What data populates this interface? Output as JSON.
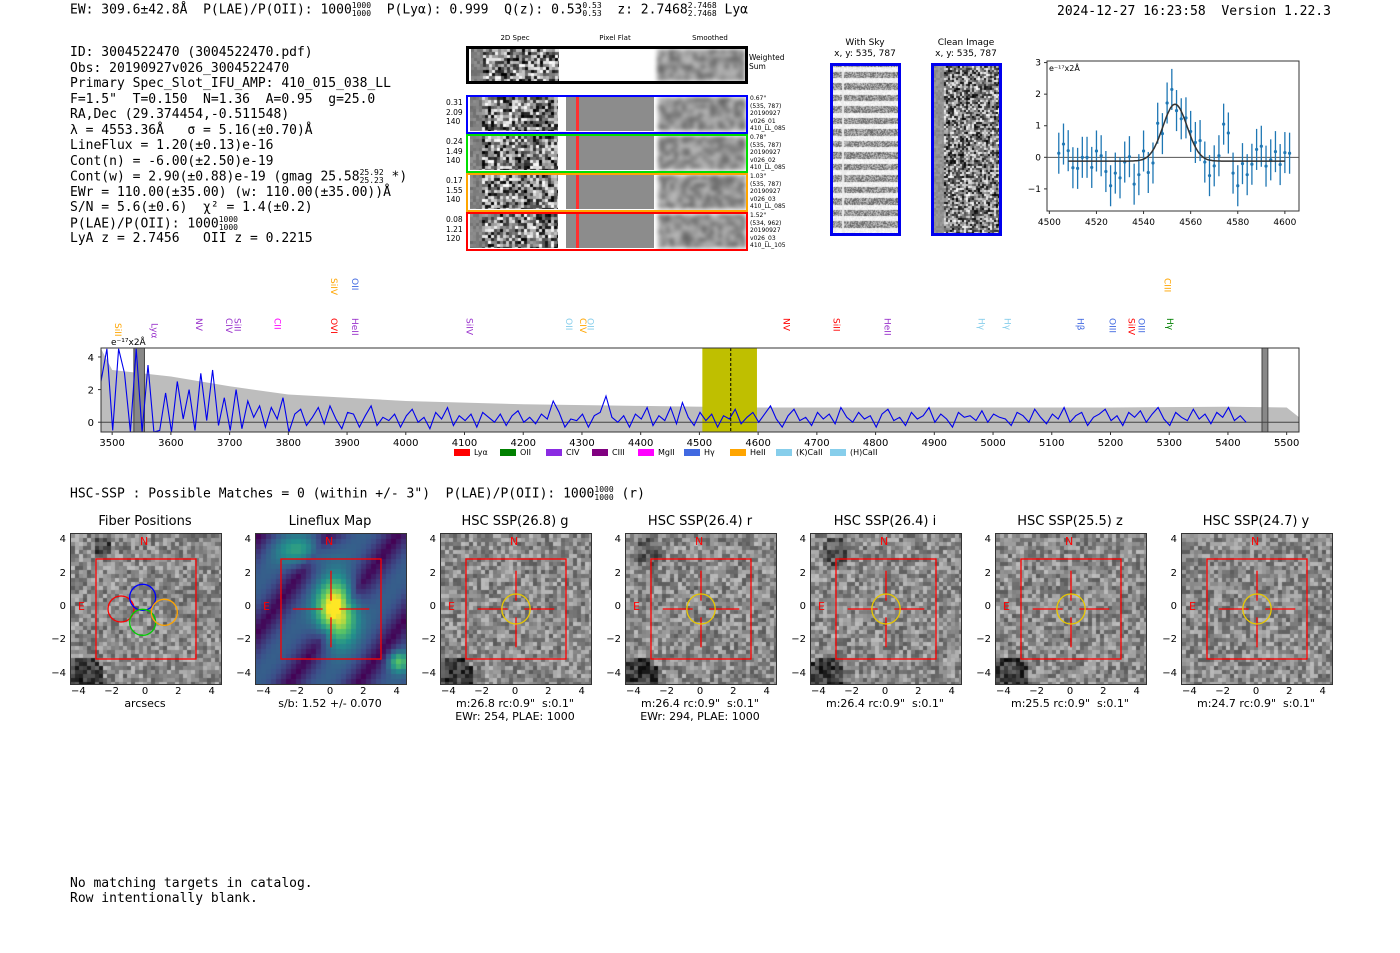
{
  "header": {
    "ew": "EW: 309.6±42.8Å",
    "plae_label": "P(LAE)/P(OII): 1000",
    "plae_hi": "1000",
    "plae_lo": "1000",
    "plya": "P(Lyα): 0.999",
    "qz": "Q(z): 0.53",
    "qz_hi": "0.53",
    "qz_lo": "0.53",
    "z": "z: 2.7468",
    "z_hi": "2.7468",
    "z_lo": "2.7468",
    "z_line": "Lyα",
    "datetime": "2024-12-27 16:23:58",
    "version": "Version 1.22.3"
  },
  "info": {
    "lines": [
      "ID: 3004522470 (3004522470.pdf)",
      "Obs: 20190927v026_3004522470",
      "Primary Spec_Slot_IFU_AMP: 410_015_038_LL",
      "F=1.5\"  T=0.150  N=1.36  A=0.95  g=25.0",
      "RA,Dec (29.374454,-0.511548)",
      "λ = 4553.36Å   σ = 5.16(±0.70)Å",
      "LineFlux = 1.20(±0.13)e-16",
      "Cont(n) = -6.00(±2.50)e-19"
    ],
    "cont_w": "Cont(w) = 2.90(±0.88)e-19 (gmag 25.58",
    "gmag_hi": "25.92",
    "gmag_lo": "25.23",
    "cont_w_end": " *)",
    "lines2": [
      "EWr = 110.00(±35.00) (w: 110.00(±35.00))Å",
      "S/N = 5.6(±0.6)  χ² = 1.4(±0.2)"
    ],
    "plae": "P(LAE)/P(OII): 1000",
    "plae_hi": "1000",
    "plae_lo": "1000",
    "z_line": "LyA z = 2.7456   OII z = 0.2215"
  },
  "spec2d": {
    "col_headers": [
      "2D Spec",
      "Pixel Flat",
      "Smoothed"
    ],
    "weighted_label": "Weighted\nSum",
    "rows": [
      {
        "color": "#0000ff",
        "left": "0.31\n2.09\n140",
        "right": "0.67\"\n(535, 787)\n20190927\nv026_01\n410_LL_085"
      },
      {
        "color": "#00dd00",
        "left": "0.24\n1.49\n140",
        "right": "0.78\"\n(535, 787)\n20190927\nv026_02\n410_LL_085"
      },
      {
        "color": "#ffa500",
        "left": "0.17\n1.55\n140",
        "right": "1.03\"\n(535, 787)\n20190927\nv026_03\n410_LL_085"
      },
      {
        "color": "#ff0000",
        "left": "0.08\n1.21\n120",
        "right": "1.52\"\n(534, 962)\n20190927\nv026_03\n410_LL_105"
      }
    ]
  },
  "with_sky": {
    "title": "With Sky",
    "coords": "x, y: 535, 787"
  },
  "clean": {
    "title": "Clean Image",
    "coords": "x, y: 535, 787"
  },
  "chart_data": [
    {
      "type": "scatter",
      "name": "line-fit",
      "unit_label": "e⁻¹⁷x2Å",
      "xlim": [
        4499,
        4606
      ],
      "ylim": [
        -1.7,
        3.05
      ],
      "xticks": [
        4500,
        4520,
        4540,
        4560,
        4580,
        4600
      ],
      "yticks": [
        -1,
        0,
        1,
        2,
        3
      ],
      "x": [
        4504,
        4506,
        4508,
        4510,
        4512,
        4514,
        4516,
        4518,
        4520,
        4522,
        4524,
        4526,
        4528,
        4530,
        4532,
        4534,
        4536,
        4538,
        4540,
        4542,
        4544,
        4546,
        4548,
        4550,
        4552,
        4554,
        4556,
        4558,
        4560,
        4562,
        4564,
        4566,
        4568,
        4570,
        4572,
        4574,
        4576,
        4578,
        4580,
        4582,
        4584,
        4586,
        4588,
        4590,
        4592,
        4594,
        4596,
        4598,
        4600,
        4602
      ],
      "y": [
        0.13,
        0.42,
        0.21,
        -0.33,
        -0.35,
        0.0,
        0.0,
        -0.32,
        0.2,
        0.05,
        -0.45,
        -0.9,
        -0.5,
        -0.65,
        -0.15,
        0.02,
        -0.85,
        -0.55,
        0.2,
        -0.48,
        -0.18,
        1.08,
        0.75,
        1.72,
        2.15,
        1.48,
        1.22,
        1.25,
        0.82,
        0.47,
        0.53,
        -0.15,
        -0.58,
        -0.27,
        0.05,
        1.05,
        0.77,
        -0.5,
        -0.9,
        -0.2,
        -0.55,
        -0.22,
        0.25,
        0.35,
        -0.28,
        -0.08,
        0.18,
        -0.23,
        0.15,
        0.13
      ],
      "yerr": 0.65,
      "fit": {
        "center": 4553.36,
        "sigma": 5.16,
        "amplitude": 1.8,
        "baseline": -0.12
      }
    },
    {
      "type": "line",
      "name": "full-spectrum",
      "unit_label": "e⁻¹⁷x2Å",
      "xlim": [
        3481,
        5521
      ],
      "ylim": [
        -0.6,
        4.55
      ],
      "xticks": [
        3500,
        3600,
        3700,
        3800,
        3900,
        4000,
        4100,
        4200,
        4300,
        4400,
        4500,
        4600,
        4700,
        4800,
        4900,
        5000,
        5100,
        5200,
        5300,
        5400,
        5500
      ],
      "yticks": [
        0,
        2,
        4
      ],
      "highlight_range": [
        4505,
        4598
      ],
      "line_center": 4553.36,
      "masked_ranges": [
        [
          3537,
          3555
        ],
        [
          5458,
          5468
        ]
      ],
      "error_x": [
        3481,
        3500,
        3550,
        3600,
        3700,
        3800,
        3900,
        4000,
        4100,
        4200,
        4400,
        4600,
        4800,
        5000,
        5200,
        5400,
        5500,
        5521
      ],
      "error_y": [
        4.5,
        3.2,
        3.0,
        2.8,
        2.2,
        1.7,
        1.5,
        1.3,
        1.2,
        1.1,
        1.0,
        0.9,
        0.9,
        0.9,
        0.9,
        0.95,
        0.9,
        0.3
      ],
      "flux_step": 10,
      "flux": [
        2.5,
        4.5,
        -0.5,
        4.5,
        3.0,
        -0.6,
        4.5,
        -0.6,
        3.5,
        -0.6,
        -0.5,
        1.8,
        -0.6,
        2.5,
        0.2,
        2.0,
        -0.5,
        3.0,
        0.1,
        3.2,
        -0.2,
        1.5,
        -0.5,
        2.0,
        -0.4,
        1.3,
        0.3,
        1.0,
        -0.3,
        0.9,
        0.2,
        1.5,
        -0.6,
        0.5,
        0.8,
        -0.2,
        0.3,
        0.9,
        -0.1,
        1.0,
        0.2,
        -0.4,
        0.6,
        0.5,
        -0.3,
        0.4,
        1.0,
        -0.2,
        0.3,
        0.1,
        0.5,
        -0.3,
        0.4,
        0.8,
        0.0,
        0.3,
        -0.4,
        0.6,
        0.2,
        0.9,
        -0.2,
        0.4,
        0.1,
        0.5,
        -0.3,
        0.6,
        0.3,
        0.0,
        0.5,
        -0.2,
        0.4,
        0.7,
        0.0,
        0.3,
        -0.1,
        0.5,
        0.2,
        1.3,
        0.6,
        -0.3,
        0.2,
        0.1,
        0.5,
        -0.3,
        0.4,
        0.6,
        1.6,
        0.3,
        0.0,
        0.4,
        -0.3,
        0.5,
        0.2,
        0.9,
        -0.2,
        0.4,
        0.1,
        0.9,
        -0.1,
        1.2,
        0.3,
        -0.2,
        0.6,
        0.1,
        0.5,
        -0.3,
        0.4,
        0.2,
        0.8,
        -0.1,
        0.3,
        0.6,
        0.0,
        0.5,
        1.0,
        0.2,
        -0.3,
        0.4,
        0.8,
        0.1,
        0.3,
        -0.2,
        0.6,
        0.2,
        0.5,
        -0.1,
        0.9,
        0.3,
        0.0,
        0.6,
        0.2,
        0.4,
        -0.3,
        0.5,
        0.8,
        0.1,
        0.3,
        -0.2,
        0.6,
        0.2,
        0.4,
        0.9,
        0.0,
        0.5,
        0.2,
        -0.3,
        0.6,
        0.3,
        0.4,
        0.1,
        0.7,
        0.0,
        0.5,
        0.3,
        0.2,
        -0.2,
        0.6,
        0.4,
        0.0,
        0.8,
        0.3,
        -0.1,
        0.5,
        0.2,
        0.9,
        0.0,
        0.4,
        0.6,
        -0.2,
        0.3,
        0.5,
        0.8,
        0.1,
        0.4,
        -0.2,
        0.6,
        0.3,
        0.7,
        0.0,
        0.5,
        0.9,
        0.2,
        -0.2,
        0.6,
        0.3,
        0.1,
        0.8,
        0.2,
        0.5,
        -0.1,
        0.6,
        0.3,
        0.9,
        0.1,
        0.4,
        0.0
      ],
      "line_labels": [
        {
          "name": "SiII",
          "w": 3508,
          "color": "#ffa500",
          "row": "low"
        },
        {
          "name": "Lyα",
          "w": 3570,
          "color": "#9932cc",
          "row": "low"
        },
        {
          "name": "NV",
          "w": 3646,
          "color": "#9932cc",
          "row": "mid"
        },
        {
          "name": "CIV",
          "w": 3697,
          "color": "#9932cc",
          "row": "mid"
        },
        {
          "name": "SiII",
          "w": 3712,
          "color": "#9932cc",
          "row": "mid"
        },
        {
          "name": "CII",
          "w": 3780,
          "color": "#ff00ff",
          "row": "mid"
        },
        {
          "name": "OVI",
          "w": 3876,
          "color": "#ff0000",
          "row": "mid"
        },
        {
          "name": "SiIV",
          "w": 3876,
          "color": "#ffa500",
          "row": "high"
        },
        {
          "name": "HeII",
          "w": 3912,
          "color": "#9932cc",
          "row": "mid"
        },
        {
          "name": "OII",
          "w": 3912,
          "color": "#4169e1",
          "row": "high"
        },
        {
          "name": "SiIV",
          "w": 4107,
          "color": "#9932cc",
          "row": "mid"
        },
        {
          "name": "OII",
          "w": 4276,
          "color": "#87ceeb",
          "row": "mid"
        },
        {
          "name": "CIV",
          "w": 4300,
          "color": "#ffa500",
          "row": "mid"
        },
        {
          "name": "OII",
          "w": 4313,
          "color": "#87ceeb",
          "row": "mid"
        },
        {
          "name": "NV",
          "w": 4647,
          "color": "#ff0000",
          "row": "mid"
        },
        {
          "name": "SiII",
          "w": 4732,
          "color": "#ff0000",
          "row": "mid"
        },
        {
          "name": "HeII",
          "w": 4819,
          "color": "#9932cc",
          "row": "mid"
        },
        {
          "name": "Hγ",
          "w": 4979,
          "color": "#87ceeb",
          "row": "mid"
        },
        {
          "name": "Hγ",
          "w": 5023,
          "color": "#87ceeb",
          "row": "mid"
        },
        {
          "name": "Hβ",
          "w": 5147,
          "color": "#4169e1",
          "row": "mid"
        },
        {
          "name": "OIII",
          "w": 5202,
          "color": "#4169e1",
          "row": "mid"
        },
        {
          "name": "SiIV",
          "w": 5234,
          "color": "#ff0000",
          "row": "mid"
        },
        {
          "name": "OIII",
          "w": 5251,
          "color": "#4169e1",
          "row": "mid"
        },
        {
          "name": "CIII",
          "w": 5295,
          "color": "#ffa500",
          "row": "high"
        },
        {
          "name": "Hγ",
          "w": 5300,
          "color": "#008000",
          "row": "mid"
        }
      ],
      "legend": [
        {
          "label": "Lyα",
          "color": "#ff0000"
        },
        {
          "label": "OII",
          "color": "#008000"
        },
        {
          "label": "CIV",
          "color": "#8a2be2"
        },
        {
          "label": "CIII",
          "color": "#800080"
        },
        {
          "label": "MgII",
          "color": "#ff00ff"
        },
        {
          "label": "Hγ",
          "color": "#4169e1"
        },
        {
          "label": "HeII",
          "color": "#ffa500"
        },
        {
          "label": "(K)CaII",
          "color": "#87ceeb"
        },
        {
          "label": "(H)CaII",
          "color": "#87ceeb"
        }
      ]
    }
  ],
  "hsc": {
    "summary": "HSC-SSP : Possible Matches = 0 (within +/- 3\")  P(LAE)/P(OII): 1000",
    "hi": "1000",
    "lo": "1000",
    "suffix": "(r)"
  },
  "cutouts": {
    "ticks": [
      "−4",
      "−2",
      "0",
      "2",
      "4"
    ],
    "north": "N",
    "east": "E",
    "panels": [
      {
        "title": "Fiber Positions",
        "caption": "arcsecs",
        "kind": "fibers"
      },
      {
        "title": "Lineflux Map",
        "caption": "s/b: 1.52 +/- 0.070",
        "kind": "flux"
      },
      {
        "title": "HSC SSP(26.8) g",
        "caption": "m:26.8 rc:0.9\"  s:0.1\"\nEWr: 254, PLAE: 1000",
        "kind": "hsc"
      },
      {
        "title": "HSC SSP(26.4) r",
        "caption": "m:26.4 rc:0.9\"  s:0.1\"\nEWr: 294, PLAE: 1000",
        "kind": "hsc"
      },
      {
        "title": "HSC SSP(26.4) i",
        "caption": "m:26.4 rc:0.9\"  s:0.1\"",
        "kind": "hsc"
      },
      {
        "title": "HSC SSP(25.5) z",
        "caption": "m:25.5 rc:0.9\"  s:0.1\"",
        "kind": "hsc"
      },
      {
        "title": "HSC SSP(24.7) y",
        "caption": "m:24.7 rc:0.9\"  s:0.1\"",
        "kind": "hsc"
      }
    ]
  },
  "footer": {
    "line1": "No matching targets in catalog.",
    "line2": "Row intentionally blank."
  }
}
